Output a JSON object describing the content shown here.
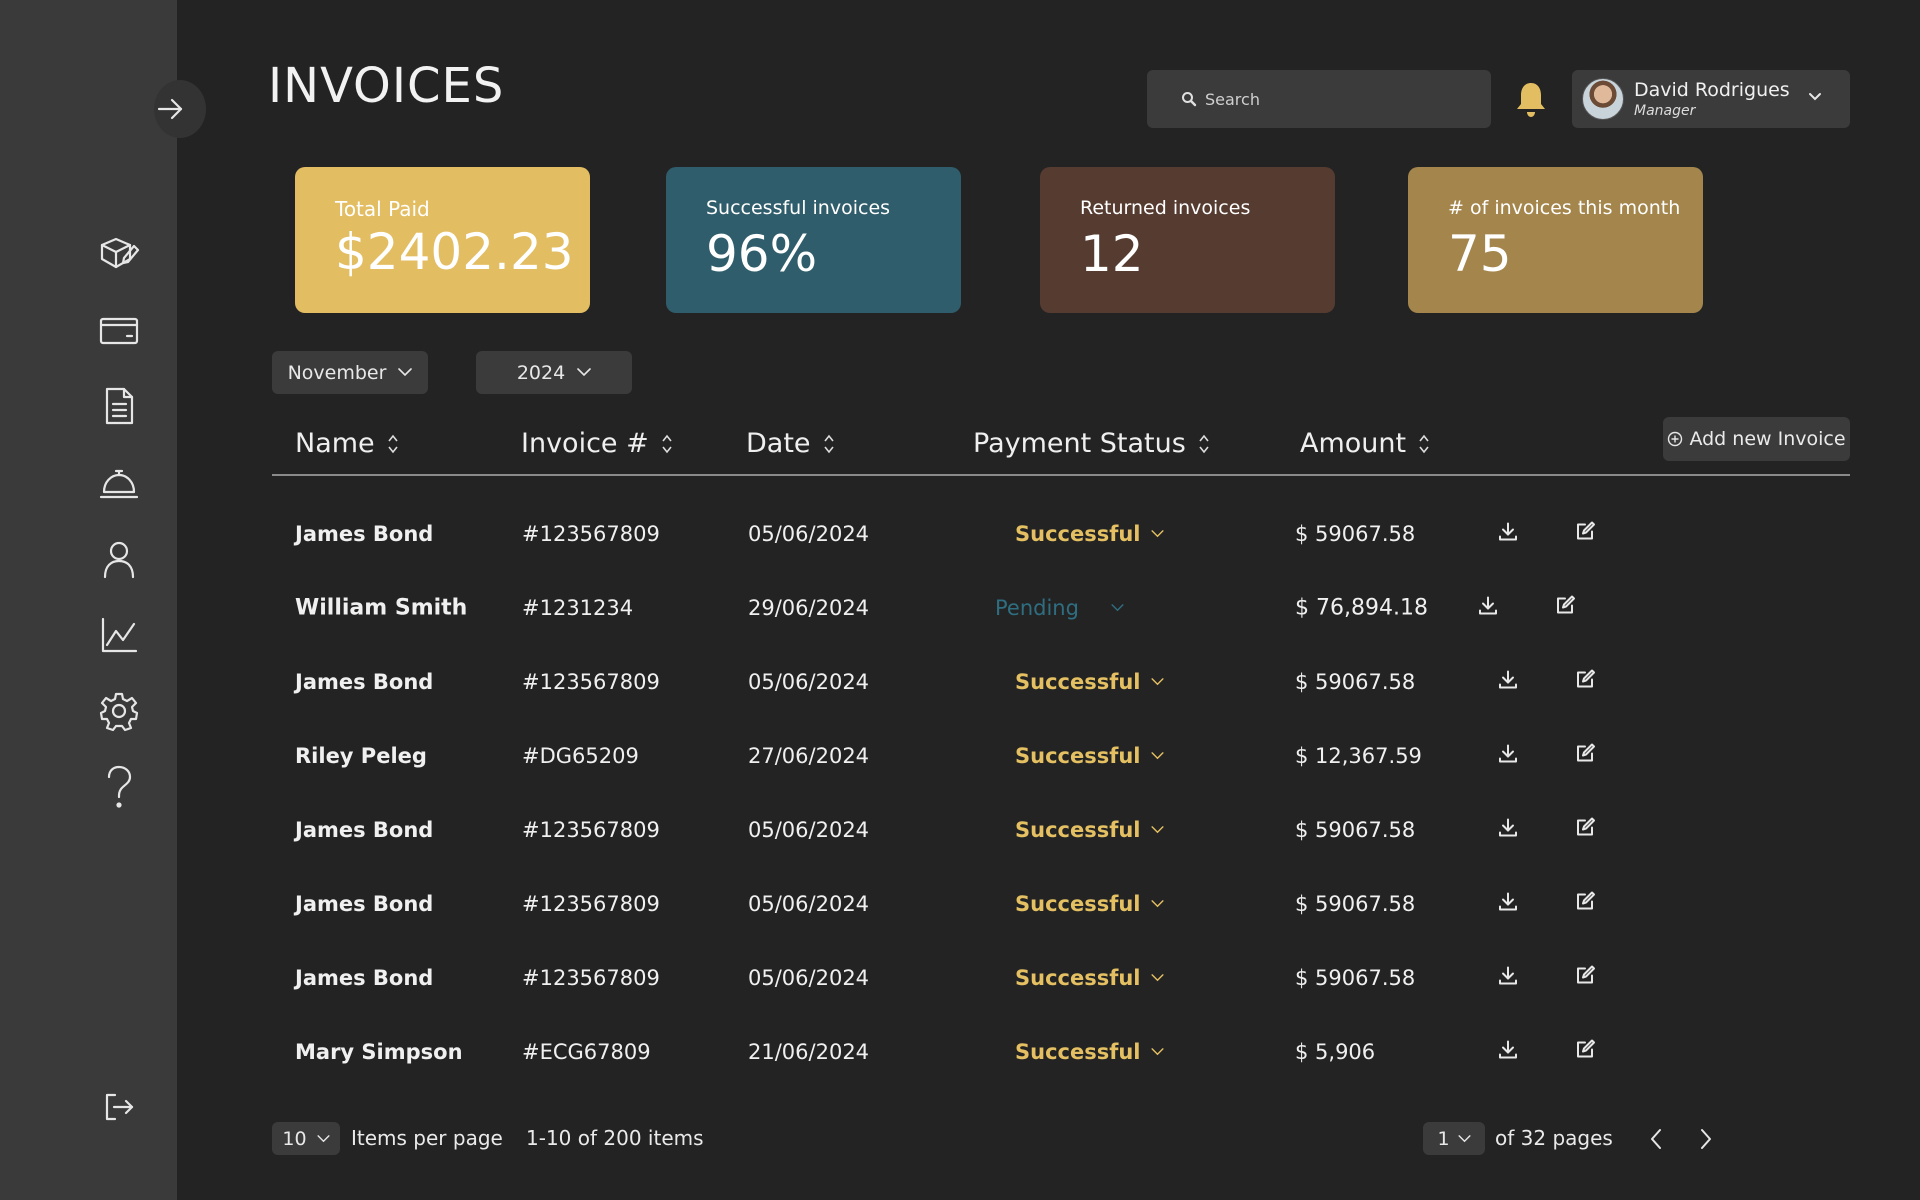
{
  "header": {
    "title": "INVOICES",
    "search_placeholder": "Search",
    "user_name": "David Rodrigues",
    "user_role": "Manager"
  },
  "sidebar": {
    "items": [
      {
        "icon": "package-icon"
      },
      {
        "icon": "credit-card-icon"
      },
      {
        "icon": "document-icon"
      },
      {
        "icon": "service-bell-icon"
      },
      {
        "icon": "user-icon"
      },
      {
        "icon": "chart-icon"
      },
      {
        "icon": "settings-icon"
      },
      {
        "icon": "help-icon"
      }
    ],
    "logout_icon": "logout-icon",
    "toggle_icon": "arrow-right-icon"
  },
  "stats": {
    "total_paid": {
      "label": "Total Paid",
      "value": "$2402.23",
      "color": "#e3bd62"
    },
    "successful": {
      "label": "Successful invoices",
      "value": "96%",
      "color": "#305d6c"
    },
    "returned": {
      "label": "Returned invoices",
      "value": "12",
      "color": "#563b30"
    },
    "monthly": {
      "label": "# of invoices this month",
      "value": "75",
      "color": "#a4854b"
    }
  },
  "filters": {
    "month": "November",
    "year": "2024"
  },
  "table": {
    "columns": {
      "name": "Name",
      "invoice": "Invoice #",
      "date": "Date",
      "status": "Payment Status",
      "amount": "Amount"
    },
    "add_button": "Add new Invoice",
    "rows": [
      {
        "name": "James Bond",
        "invoice": "#123567809",
        "date": "05/06/2024",
        "status": "Successful",
        "amount": "$ 59067.58"
      },
      {
        "name": "William Smith",
        "invoice": "#1231234",
        "date": "29/06/2024",
        "status": "Pending",
        "amount": "$ 76,894.18"
      },
      {
        "name": "James Bond",
        "invoice": "#123567809",
        "date": "05/06/2024",
        "status": "Successful",
        "amount": "$ 59067.58"
      },
      {
        "name": "Riley Peleg",
        "invoice": "#DG65209",
        "date": "27/06/2024",
        "status": "Successful",
        "amount": "$ 12,367.59"
      },
      {
        "name": "James Bond",
        "invoice": "#123567809",
        "date": "05/06/2024",
        "status": "Successful",
        "amount": "$ 59067.58"
      },
      {
        "name": "James Bond",
        "invoice": "#123567809",
        "date": "05/06/2024",
        "status": "Successful",
        "amount": "$ 59067.58"
      },
      {
        "name": "James Bond",
        "invoice": "#123567809",
        "date": "05/06/2024",
        "status": "Successful",
        "amount": "$ 59067.58"
      },
      {
        "name": "Mary Simpson",
        "invoice": "#ECG67809",
        "date": "21/06/2024",
        "status": "Successful",
        "amount": "$ 5,906"
      }
    ]
  },
  "footer": {
    "per_page": "10",
    "per_page_label": "Items per page",
    "range": "1-10 of 200 items",
    "page": "1",
    "pages_label": "of 32 pages"
  },
  "colors": {
    "status_successful": "#e4c062",
    "status_pending": "#2f6e80",
    "bell": "#e3bd62"
  }
}
